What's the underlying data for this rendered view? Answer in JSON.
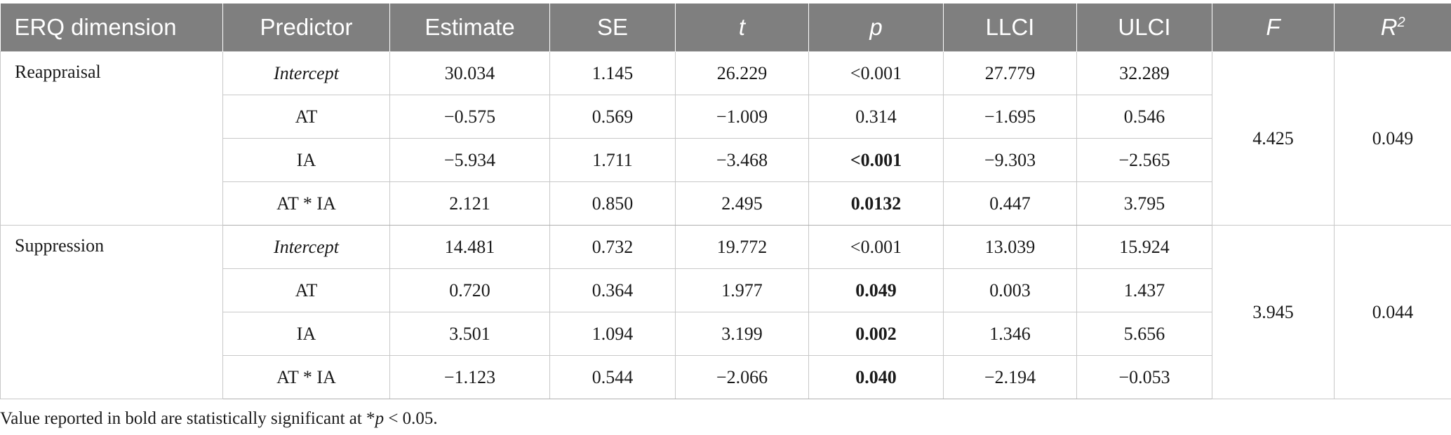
{
  "table": {
    "headers": [
      "ERQ dimension",
      "Predictor",
      "Estimate",
      "SE",
      "t",
      "p",
      "LLCI",
      "ULCI",
      "F",
      "R2"
    ],
    "groups": [
      {
        "dimension": "Reappraisal",
        "F": "4.425",
        "R2": "0.049",
        "rows": [
          {
            "predictor": "Intercept",
            "estimate": "30.034",
            "se": "1.145",
            "t": "26.229",
            "p": "<0.001",
            "llci": "27.779",
            "ulci": "32.289",
            "p_bold": false
          },
          {
            "predictor": "AT",
            "estimate": "−0.575",
            "se": "0.569",
            "t": "−1.009",
            "p": "0.314",
            "llci": "−1.695",
            "ulci": "0.546",
            "p_bold": false
          },
          {
            "predictor": "IA",
            "estimate": "−5.934",
            "se": "1.711",
            "t": "−3.468",
            "p": "<0.001",
            "llci": "−9.303",
            "ulci": "−2.565",
            "p_bold": true
          },
          {
            "predictor": "AT * IA",
            "estimate": "2.121",
            "se": "0.850",
            "t": "2.495",
            "p": "0.0132",
            "llci": "0.447",
            "ulci": "3.795",
            "p_bold": true
          }
        ]
      },
      {
        "dimension": "Suppression",
        "F": "3.945",
        "R2": "0.044",
        "rows": [
          {
            "predictor": "Intercept",
            "estimate": "14.481",
            "se": "0.732",
            "t": "19.772",
            "p": "<0.001",
            "llci": "13.039",
            "ulci": "15.924",
            "p_bold": false
          },
          {
            "predictor": "AT",
            "estimate": "0.720",
            "se": "0.364",
            "t": "1.977",
            "p": "0.049",
            "llci": "0.003",
            "ulci": "1.437",
            "p_bold": true
          },
          {
            "predictor": "IA",
            "estimate": "3.501",
            "se": "1.094",
            "t": "3.199",
            "p": "0.002",
            "llci": "1.346",
            "ulci": "5.656",
            "p_bold": true
          },
          {
            "predictor": "AT * IA",
            "estimate": "−1.123",
            "se": "0.544",
            "t": "−2.066",
            "p": "0.040",
            "llci": "−2.194",
            "ulci": "−0.053",
            "p_bold": true
          }
        ]
      }
    ]
  },
  "note": {
    "before": "Value reported in bold are statistically significant at *",
    "italic": "p",
    "after": " < 0.05."
  }
}
